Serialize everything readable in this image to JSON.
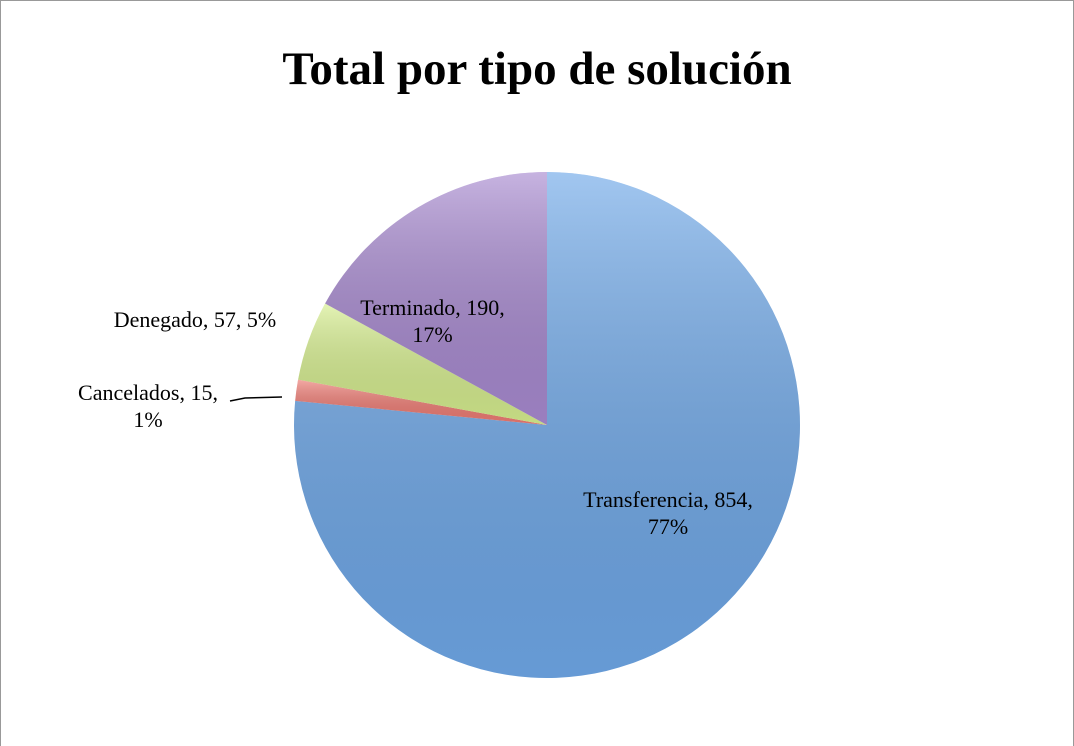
{
  "chart_data": {
    "type": "pie",
    "title": "Total por tipo de solución",
    "values": [
      854,
      15,
      57,
      190
    ],
    "value_labels": [
      "Transferencia, 854, 77%",
      "Cancelados, 15, 1%",
      "Denegado, 57, 5%",
      "Terminado, 190, 17%"
    ],
    "colors": [
      "#6fa8e8",
      "#ee7b73",
      "#d6ee8e",
      "#a88ad0"
    ]
  }
}
